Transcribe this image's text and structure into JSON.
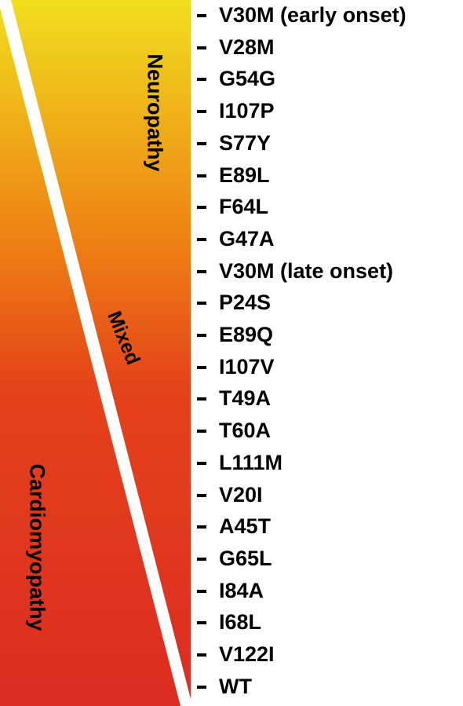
{
  "colors": {
    "gradient_top": "#f1de1e",
    "gradient_mid": "#ee7e13",
    "gradient_low": "#e4421a",
    "gradient_bottom": "#dc2c22",
    "divider": "#ffffff",
    "text": "#000000"
  },
  "regions": {
    "neuropathy": "Neuropathy",
    "mixed": "Mixed",
    "cardiomyopathy": "Cardiomyopathy"
  },
  "variants": [
    "V30M (early onset)",
    "V28M",
    "G54G",
    "I107P",
    "S77Y",
    "E89L",
    "F64L",
    "G47A",
    "V30M (late onset)",
    "P24S",
    "E89Q",
    "I107V",
    "T49A",
    "T60A",
    "L111M",
    "V20I",
    "A45T",
    "G65L",
    "I84A",
    "I68L",
    "V122I",
    "WT"
  ]
}
